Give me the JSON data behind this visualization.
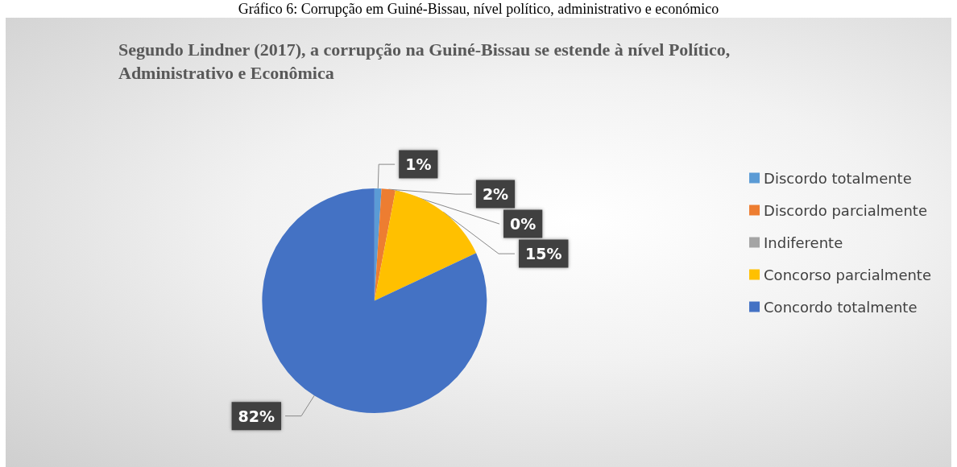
{
  "chart_data": {
    "type": "pie",
    "title": "Segundo Lindner (2017), a corrupção na Guiné-Bissau se estende à nível Político, Administrativo e Econômica",
    "annotations": [
      "Gráfico 6: Corrupção em Guiné-Bissau, nível político, administrativo e económico"
    ],
    "categories": [
      "Discordo totalmente",
      "Discordo parcialmente",
      "Indiferente",
      "Concorso parcialmente",
      "Concordo totalmente"
    ],
    "values": [
      1,
      2,
      0,
      15,
      82
    ],
    "colors": [
      "#5b9bd5",
      "#ed7d31",
      "#a5a5a5",
      "#ffc000",
      "#4472c4"
    ],
    "value_labels": [
      "1%",
      "2%",
      "0%",
      "15%",
      "82%"
    ],
    "legend": "right"
  }
}
